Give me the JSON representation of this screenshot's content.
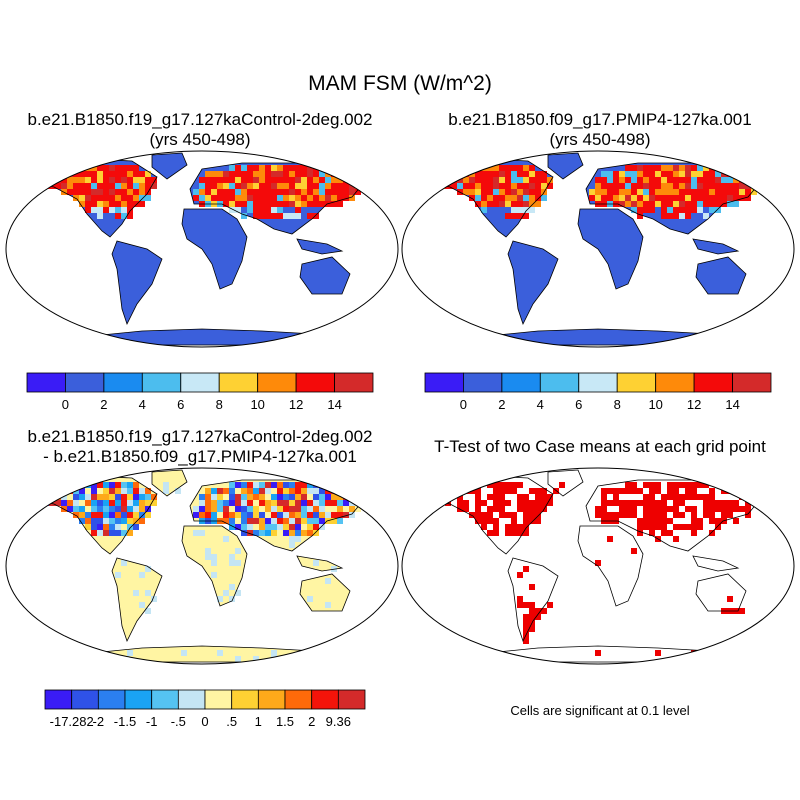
{
  "title": "MAM FSM (W/m^2)",
  "panels": {
    "control": {
      "title_line1": "b.e21.B1850.f19_g17.127kaControl-2deg.002",
      "title_line2": "(yrs 450-498)"
    },
    "pmip4": {
      "title_line1": "b.e21.B1850.f09_g17.PMIP4-127ka.001",
      "title_line2": "(yrs 450-498)"
    },
    "difference": {
      "title_line1": "b.e21.B1850.f19_g17.127kaControl-2deg.002",
      "title_line2": "- b.e21.B1850.f09_g17.PMIP4-127ka.001"
    },
    "ttest": {
      "title_line1": "T-Test of two Case means at each grid point",
      "note": "Cells are significant at 0.1 level"
    }
  },
  "colorbars": {
    "abs": {
      "colors": [
        "#3a1cf6",
        "#3b5fdb",
        "#1a8bf0",
        "#4cbdee",
        "#c8e8f6",
        "#fed133",
        "#fe8a0a",
        "#f40a0a",
        "#d42a2a"
      ],
      "labels": [
        "0",
        "2",
        "4",
        "6",
        "8",
        "10",
        "12",
        "14"
      ]
    },
    "diff": {
      "colors": [
        "#3a1cf6",
        "#2f52e8",
        "#2b7ff0",
        "#1aa3f3",
        "#55c3f2",
        "#c4e5f4",
        "#fff5a3",
        "#fed133",
        "#fea91a",
        "#fe6a0a",
        "#f4140a",
        "#d42a2a"
      ],
      "labels": [
        "-17.282",
        "-2",
        "-1.5",
        "-1",
        "-.5",
        "0",
        ".5",
        "1",
        "1.5",
        "2",
        "9.36"
      ]
    }
  },
  "colors": {
    "land_base_abs": "#3b5fdb",
    "land_base_diff": "#fff5a3",
    "significant": "#ee0000",
    "outline": "#000000"
  }
}
